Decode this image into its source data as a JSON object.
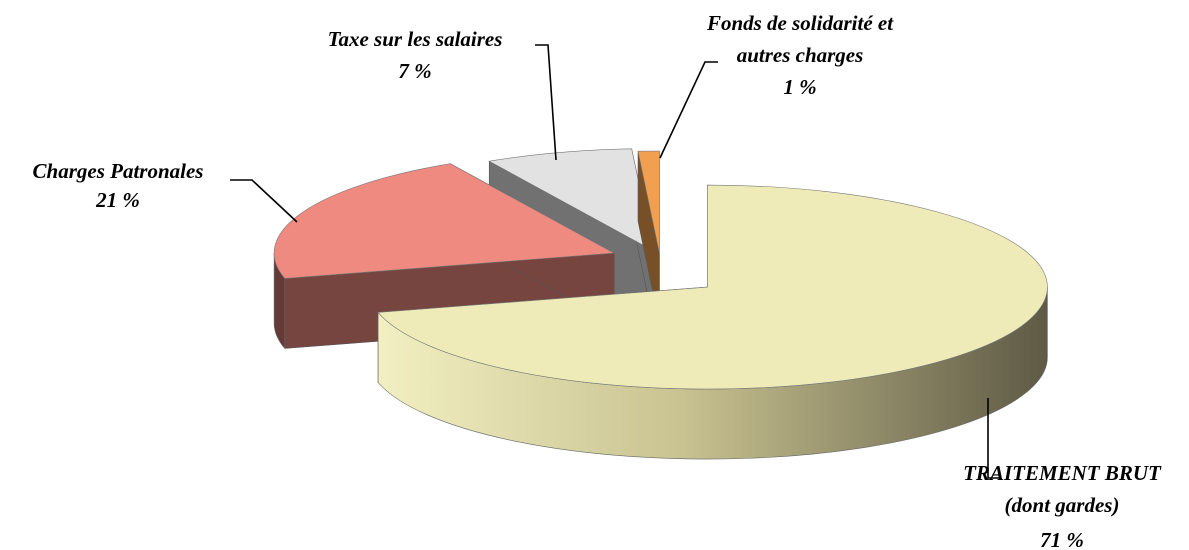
{
  "chart_data": {
    "type": "pie",
    "three_d": true,
    "categories": [
      "TRAITEMENT BRUT\n(dont gardes)",
      "Charges Patronales",
      "Taxe sur les salaires",
      "Fonds de solidarité et\nautres charges"
    ],
    "values": [
      71,
      21,
      7,
      1
    ],
    "value_labels": [
      "71 %",
      "21 %",
      "7 %",
      "1 %"
    ],
    "colors": [
      "#eeebb8",
      "#ee8a80",
      "#e2e2e2",
      "#f0a050"
    ]
  }
}
